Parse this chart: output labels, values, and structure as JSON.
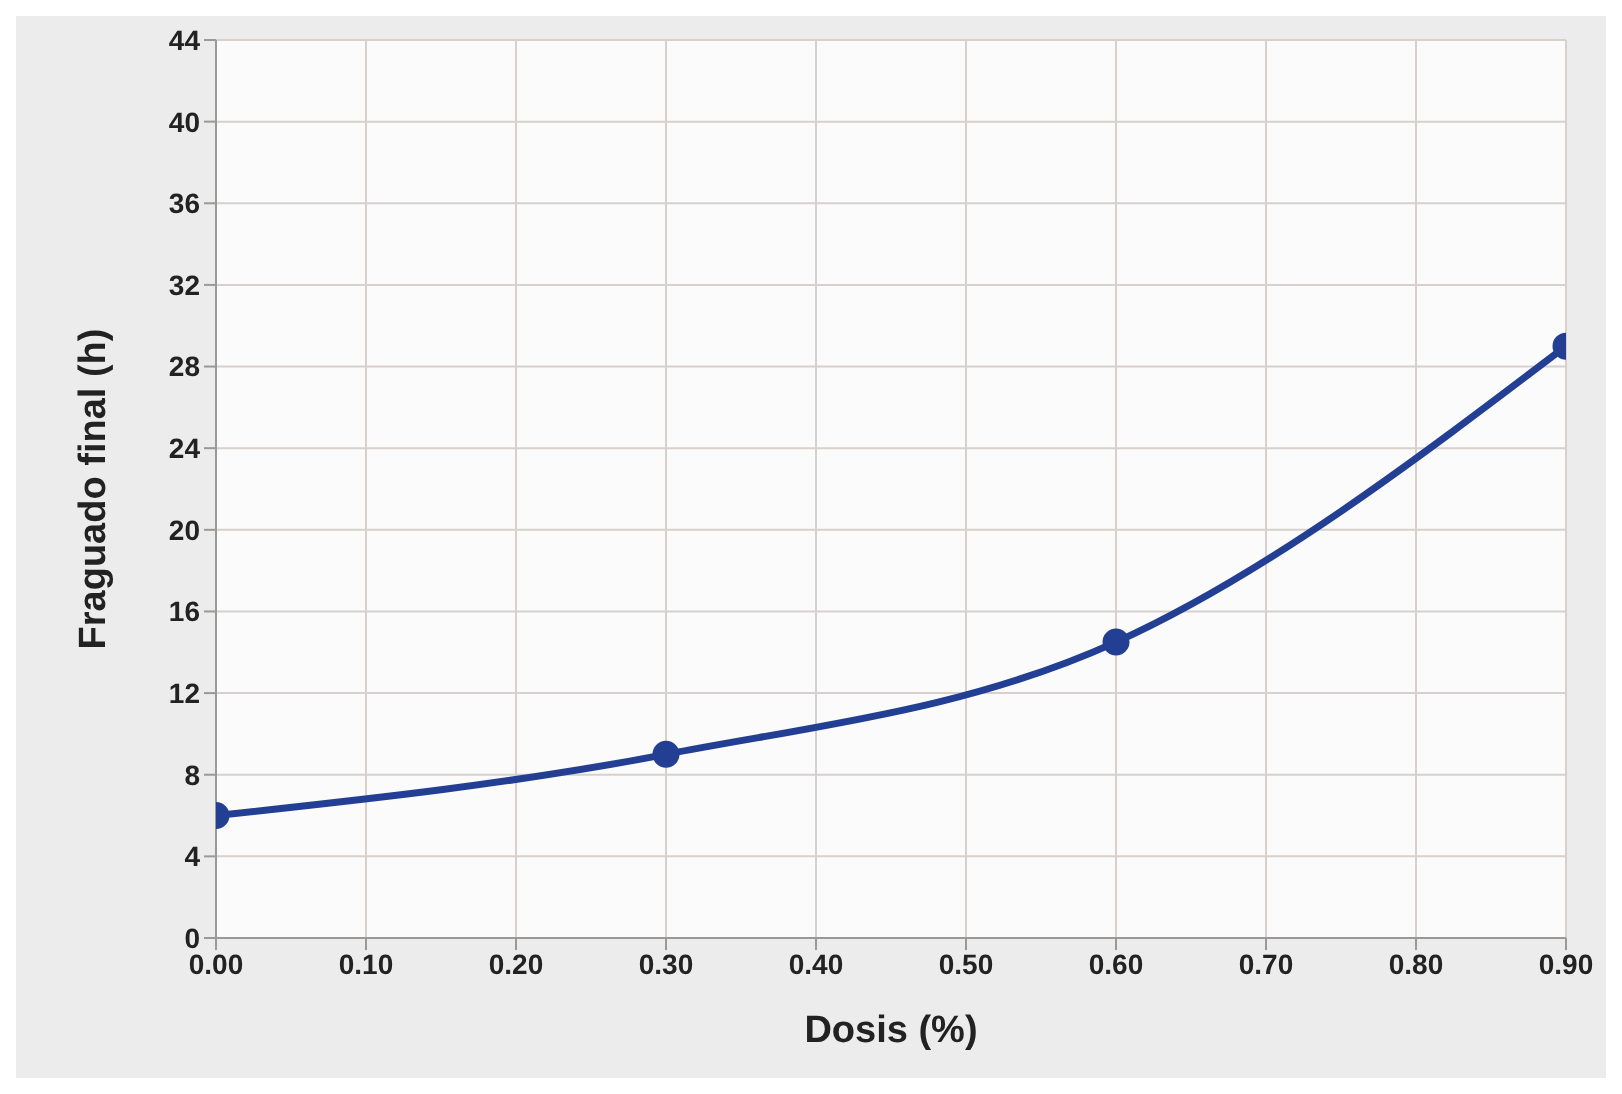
{
  "chart_data": {
    "type": "line",
    "xlabel": "Dosis (%)",
    "ylabel": "Fraguado final (h)",
    "x": [
      0,
      0.3,
      0.6,
      0.9
    ],
    "series": [
      {
        "color": "#233f94",
        "values": [
          6,
          9,
          14.5,
          29
        ]
      }
    ],
    "xlim": [
      0,
      0.9
    ],
    "xticks": [
      {
        "value": 0,
        "label": "0.00"
      },
      {
        "value": 0.1,
        "label": "0.10"
      },
      {
        "value": 0.2,
        "label": "0.20"
      },
      {
        "value": 0.3,
        "label": "0.30"
      },
      {
        "value": 0.4,
        "label": "0.40"
      },
      {
        "value": 0.5,
        "label": "0.50"
      },
      {
        "value": 0.6,
        "label": "0.60"
      },
      {
        "value": 0.7,
        "label": "0.70"
      },
      {
        "value": 0.8,
        "label": "0.80"
      },
      {
        "value": 0.9,
        "label": "0.90"
      }
    ],
    "ylim": [
      0,
      44
    ],
    "yticks": [
      0,
      4,
      8,
      12,
      16,
      20,
      24,
      28,
      32,
      36,
      40,
      44
    ],
    "grid": true,
    "marker": "circle",
    "line_style": "solid"
  }
}
